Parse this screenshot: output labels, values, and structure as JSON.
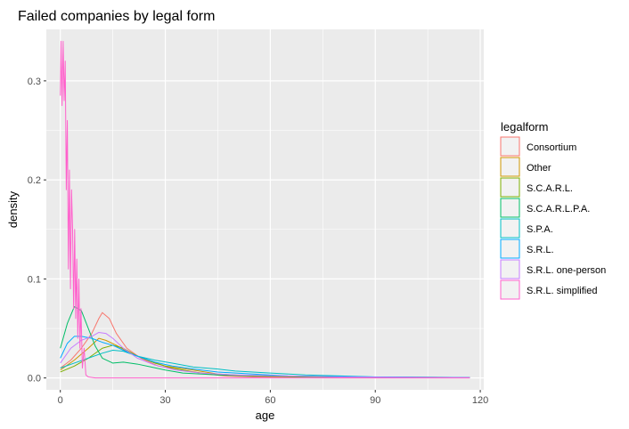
{
  "chart_data": {
    "type": "line",
    "title": "Failed companies by  legal form",
    "xlabel": "age",
    "ylabel": "density",
    "xlim": [
      -4,
      121
    ],
    "ylim": [
      -0.012,
      0.352
    ],
    "x_ticks": [
      0,
      30,
      60,
      90,
      120
    ],
    "y_ticks": [
      0.0,
      0.1,
      0.2,
      0.3
    ],
    "x_tick_labels": [
      "0",
      "30",
      "60",
      "90",
      "120"
    ],
    "y_tick_labels": [
      "0.0",
      "0.1",
      "0.2",
      "0.3"
    ],
    "grid": true,
    "legend_title": "legalform",
    "legend_position": "right",
    "series": [
      {
        "name": "Consortium",
        "color": "#F8766D",
        "points": [
          [
            0,
            0.01
          ],
          [
            3,
            0.018
          ],
          [
            6,
            0.03
          ],
          [
            9,
            0.045
          ],
          [
            11,
            0.06
          ],
          [
            12,
            0.066
          ],
          [
            14,
            0.06
          ],
          [
            16,
            0.045
          ],
          [
            19,
            0.03
          ],
          [
            23,
            0.02
          ],
          [
            28,
            0.012
          ],
          [
            35,
            0.008
          ],
          [
            42,
            0.004
          ],
          [
            47,
            0.002
          ],
          [
            55,
            0.001
          ],
          [
            70,
            0.001
          ],
          [
            90,
            0.0005
          ],
          [
            117,
            0.0003
          ]
        ]
      },
      {
        "name": "Other",
        "color": "#CD9600",
        "points": [
          [
            0,
            0.008
          ],
          [
            4,
            0.018
          ],
          [
            8,
            0.03
          ],
          [
            11,
            0.04
          ],
          [
            13,
            0.038
          ],
          [
            16,
            0.033
          ],
          [
            20,
            0.025
          ],
          [
            25,
            0.018
          ],
          [
            30,
            0.012
          ],
          [
            38,
            0.008
          ],
          [
            45,
            0.004
          ],
          [
            55,
            0.002
          ],
          [
            70,
            0.001
          ],
          [
            90,
            0.0005
          ],
          [
            117,
            0.0003
          ]
        ]
      },
      {
        "name": "S.C.A.R.L.",
        "color": "#7CAE00",
        "points": [
          [
            0,
            0.006
          ],
          [
            4,
            0.012
          ],
          [
            8,
            0.02
          ],
          [
            12,
            0.03
          ],
          [
            15,
            0.033
          ],
          [
            18,
            0.03
          ],
          [
            22,
            0.022
          ],
          [
            27,
            0.015
          ],
          [
            32,
            0.01
          ],
          [
            38,
            0.006
          ],
          [
            45,
            0.003
          ],
          [
            55,
            0.002
          ],
          [
            70,
            0.001
          ],
          [
            117,
            0.0005
          ]
        ]
      },
      {
        "name": "S.C.A.R.L.P.A.",
        "color": "#00BE67",
        "points": [
          [
            0,
            0.03
          ],
          [
            2,
            0.055
          ],
          [
            4,
            0.072
          ],
          [
            6,
            0.068
          ],
          [
            8,
            0.05
          ],
          [
            10,
            0.032
          ],
          [
            12,
            0.02
          ],
          [
            15,
            0.015
          ],
          [
            18,
            0.016
          ],
          [
            22,
            0.014
          ],
          [
            26,
            0.011
          ],
          [
            30,
            0.008
          ],
          [
            35,
            0.005
          ],
          [
            45,
            0.003
          ],
          [
            60,
            0.002
          ],
          [
            80,
            0.001
          ],
          [
            117,
            0.0005
          ]
        ]
      },
      {
        "name": "S.P.A.",
        "color": "#00BFC4",
        "points": [
          [
            0,
            0.01
          ],
          [
            4,
            0.015
          ],
          [
            8,
            0.02
          ],
          [
            12,
            0.025
          ],
          [
            15,
            0.028
          ],
          [
            18,
            0.027
          ],
          [
            22,
            0.022
          ],
          [
            27,
            0.018
          ],
          [
            32,
            0.015
          ],
          [
            38,
            0.011
          ],
          [
            45,
            0.009
          ],
          [
            50,
            0.007
          ],
          [
            60,
            0.005
          ],
          [
            70,
            0.003
          ],
          [
            80,
            0.002
          ],
          [
            90,
            0.001
          ],
          [
            117,
            0.0005
          ]
        ]
      },
      {
        "name": "S.R.L.",
        "color": "#00A9FF",
        "points": [
          [
            0,
            0.02
          ],
          [
            2,
            0.035
          ],
          [
            4,
            0.042
          ],
          [
            6,
            0.042
          ],
          [
            9,
            0.04
          ],
          [
            12,
            0.036
          ],
          [
            15,
            0.033
          ],
          [
            18,
            0.028
          ],
          [
            22,
            0.022
          ],
          [
            27,
            0.016
          ],
          [
            32,
            0.012
          ],
          [
            38,
            0.009
          ],
          [
            45,
            0.006
          ],
          [
            55,
            0.004
          ],
          [
            65,
            0.002
          ],
          [
            80,
            0.0015
          ],
          [
            90,
            0.001
          ],
          [
            117,
            0.0003
          ]
        ]
      },
      {
        "name": "S.R.L. one-person",
        "color": "#C77CFF",
        "points": [
          [
            0,
            0.015
          ],
          [
            3,
            0.03
          ],
          [
            6,
            0.038
          ],
          [
            9,
            0.042
          ],
          [
            11,
            0.046
          ],
          [
            13,
            0.045
          ],
          [
            15,
            0.04
          ],
          [
            18,
            0.03
          ],
          [
            22,
            0.02
          ],
          [
            27,
            0.013
          ],
          [
            33,
            0.008
          ],
          [
            40,
            0.005
          ],
          [
            50,
            0.003
          ],
          [
            65,
            0.002
          ],
          [
            80,
            0.001
          ],
          [
            90,
            0.0008
          ],
          [
            117,
            0.0003
          ]
        ]
      },
      {
        "name": "S.R.L. simplified",
        "color": "#FF61CC",
        "points": [
          [
            0,
            0.285
          ],
          [
            0.2,
            0.34
          ],
          [
            0.5,
            0.275
          ],
          [
            0.8,
            0.34
          ],
          [
            1.1,
            0.28
          ],
          [
            1.4,
            0.32
          ],
          [
            1.7,
            0.19
          ],
          [
            2.0,
            0.26
          ],
          [
            2.3,
            0.11
          ],
          [
            2.6,
            0.21
          ],
          [
            2.9,
            0.09
          ],
          [
            3.2,
            0.19
          ],
          [
            3.5,
            0.15
          ],
          [
            3.8,
            0.07
          ],
          [
            4.1,
            0.15
          ],
          [
            4.4,
            0.06
          ],
          [
            4.7,
            0.12
          ],
          [
            5.0,
            0.04
          ],
          [
            5.3,
            0.1
          ],
          [
            5.6,
            0.03
          ],
          [
            5.9,
            0.07
          ],
          [
            6.3,
            0.01
          ],
          [
            6.8,
            0.03
          ],
          [
            7.3,
            0.003
          ],
          [
            8,
            0.001
          ],
          [
            10,
            0.0
          ],
          [
            30,
            0.0
          ],
          [
            90,
            0.0
          ],
          [
            117,
            0.0
          ]
        ]
      }
    ]
  }
}
